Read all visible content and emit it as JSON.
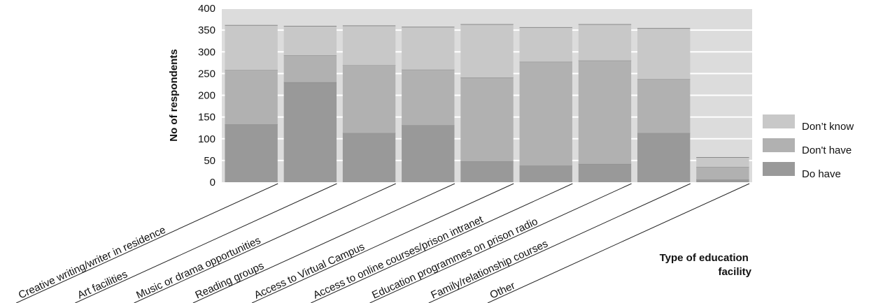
{
  "chart_data": {
    "type": "bar",
    "stacked": true,
    "ylabel": "No of respondents",
    "xlabel_lines": [
      "Type of education",
      "facility"
    ],
    "ylim": [
      0,
      400
    ],
    "yticks": [
      0,
      50,
      100,
      150,
      200,
      250,
      300,
      350,
      400
    ],
    "categories": [
      "Creative writing/writer in residence",
      "Art facilities",
      "Music or drama opportunities",
      "Reading groups",
      "Access to Virtual Campus",
      "Access to online courses/prison intranet",
      "Education programmes on prison radio",
      "Family/relationship courses",
      "Other"
    ],
    "series": [
      {
        "name": "Do have",
        "color": "#999999",
        "values": [
          133,
          230,
          113,
          131,
          48,
          38,
          42,
          113,
          6
        ]
      },
      {
        "name": "Don't have",
        "color": "#b1b1b1",
        "values": [
          125,
          62,
          156,
          128,
          193,
          239,
          238,
          124,
          29
        ]
      },
      {
        "name": "Don’t know",
        "color": "#c8c8c8",
        "values": [
          103,
          67,
          91,
          98,
          122,
          79,
          83,
          117,
          22
        ]
      }
    ],
    "legend": {
      "position": "right",
      "order": [
        "Don’t know",
        "Don't have",
        "Do have"
      ]
    },
    "grid": true,
    "plot_background": "#dcdcdc",
    "gridline_color": "#ffffff"
  }
}
